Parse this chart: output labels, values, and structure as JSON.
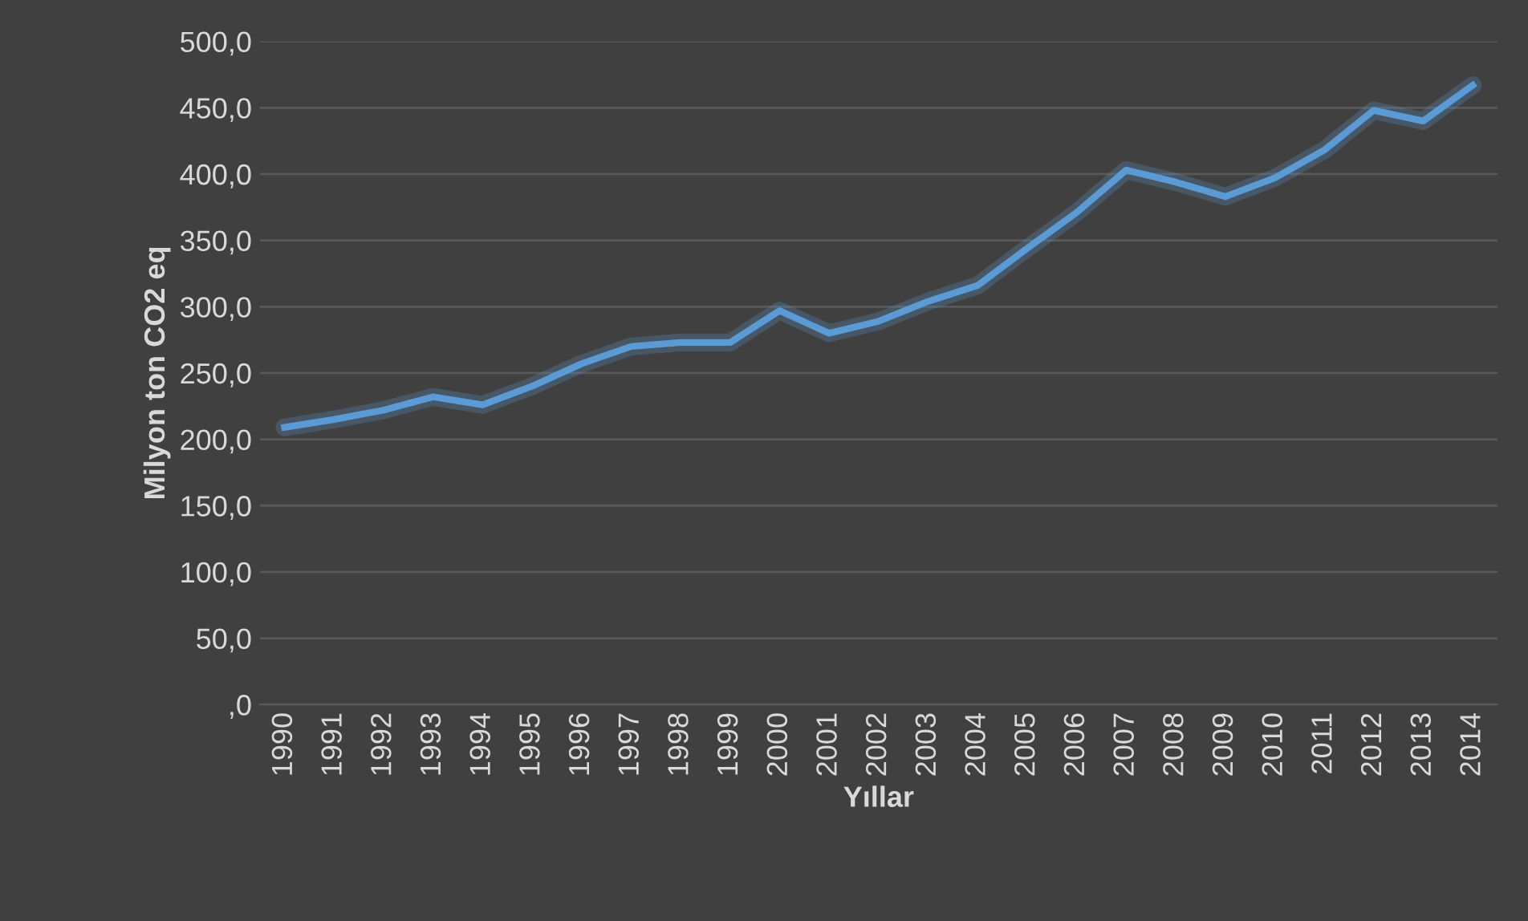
{
  "chart_data": {
    "type": "line",
    "xlabel": "Yıllar",
    "ylabel": "Milyon ton CO2 eq",
    "categories": [
      "1990",
      "1991",
      "1992",
      "1993",
      "1994",
      "1995",
      "1996",
      "1997",
      "1998",
      "1999",
      "2000",
      "2001",
      "2002",
      "2003",
      "2004",
      "2005",
      "2006",
      "2007",
      "2008",
      "2009",
      "2010",
      "2011",
      "2012",
      "2013",
      "2014"
    ],
    "series": [
      {
        "color": "#5b9bd5",
        "values": [
          209,
          215,
          222,
          232,
          226,
          240,
          257,
          270,
          273,
          273,
          297,
          280,
          289,
          304,
          316,
          344,
          371,
          403,
          394,
          383,
          397,
          418,
          448,
          440,
          467
        ]
      }
    ],
    "ylim": [
      0,
      500
    ],
    "yticks": [
      {
        "value": 0,
        "label": ",0"
      },
      {
        "value": 50,
        "label": "50,0"
      },
      {
        "value": 100,
        "label": "100,0"
      },
      {
        "value": 150,
        "label": "150,0"
      },
      {
        "value": 200,
        "label": "200,0"
      },
      {
        "value": 250,
        "label": "250,0"
      },
      {
        "value": 300,
        "label": "300,0"
      },
      {
        "value": 350,
        "label": "350,0"
      },
      {
        "value": 400,
        "label": "400,0"
      },
      {
        "value": 450,
        "label": "450,0"
      },
      {
        "value": 500,
        "label": "500,0"
      }
    ],
    "grid": "y",
    "marker": "none",
    "line_style": "solid"
  }
}
